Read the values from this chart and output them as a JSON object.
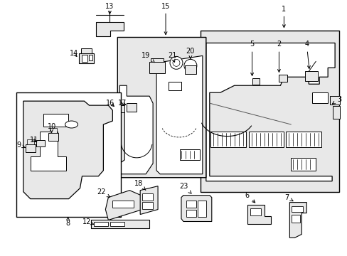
{
  "bg_color": "#ffffff",
  "fig_width": 4.89,
  "fig_height": 3.6,
  "dpi": 100,
  "line_color": "#000000",
  "text_color": "#000000",
  "label_fontsize": 7.0,
  "panel_fill": "#e8e8e8",
  "white": "#ffffff"
}
